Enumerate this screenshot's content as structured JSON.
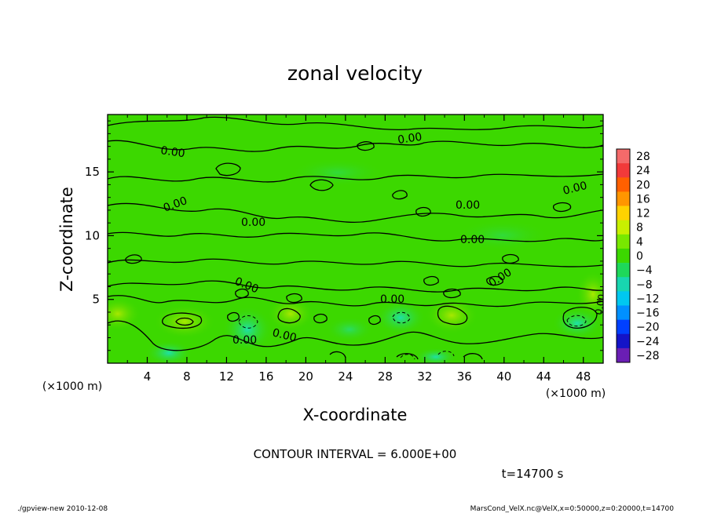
{
  "chart_data": {
    "type": "heatmap",
    "title": "zonal velocity",
    "xlabel": "X-coordinate",
    "ylabel": "Z-coordinate",
    "x_unit": "(×1000 m)",
    "y_unit": "(×1000 m)",
    "xlim": [
      0,
      50
    ],
    "ylim": [
      0,
      19.5
    ],
    "x_ticks": [
      "4",
      "8",
      "12",
      "16",
      "20",
      "24",
      "28",
      "32",
      "36",
      "40",
      "44",
      "48"
    ],
    "y_ticks": [
      "5",
      "10",
      "15"
    ],
    "colorbar": {
      "levels": [
        "28",
        "24",
        "20",
        "16",
        "12",
        "8",
        "4",
        "0",
        "−4",
        "−8",
        "−12",
        "−16",
        "−20",
        "−24",
        "−28"
      ],
      "colors": [
        "#f46a6a",
        "#f23a3a",
        "#ff6000",
        "#ff9600",
        "#ffd200",
        "#c8f000",
        "#78e800",
        "#3cd800",
        "#1ed85a",
        "#18d6b0",
        "#00c8f0",
        "#0090ff",
        "#0040ff",
        "#1414c8",
        "#6a1eb4"
      ]
    },
    "contour_labels": [
      "0.00",
      "0.00",
      "0.00",
      "0.00",
      "0.00",
      "0.00",
      "0.00",
      "0.00",
      "0.00",
      "0.00",
      "0.00",
      "0.00",
      "0.00"
    ],
    "contour_interval": "CONTOUR INTERVAL = 6.000E+00",
    "time_label": "t=14700 s"
  },
  "footer": {
    "left": "./gpview-new   2010-12-08",
    "right": "MarsCond_VelX.nc@VelX,x=0:50000,z=0:20000,t=14700"
  }
}
